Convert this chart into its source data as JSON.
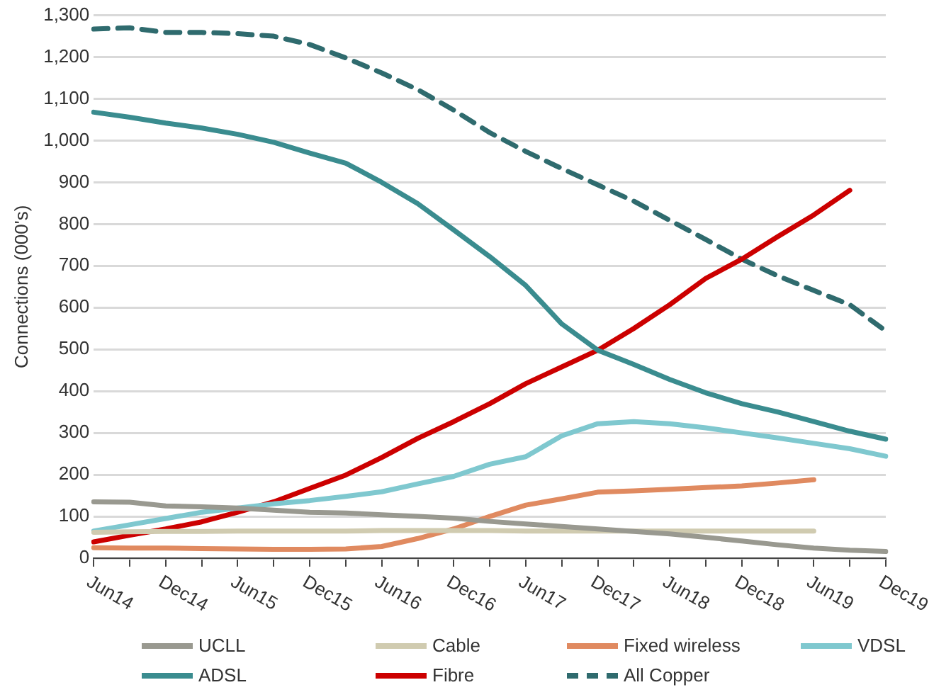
{
  "chart_data": {
    "type": "line",
    "ylabel": "Connections (000's)",
    "categories": [
      "Jun14",
      null,
      "Dec14",
      null,
      "Jun15",
      null,
      "Dec15",
      null,
      "Jun16",
      null,
      "Dec16",
      null,
      "Jun17",
      null,
      "Dec17",
      null,
      "Jun18",
      null,
      "Dec18",
      null,
      "Jun19",
      null,
      "Dec19"
    ],
    "series": [
      {
        "name": "UCLL",
        "color": "#999990",
        "values": [
          135,
          134,
          125,
          123,
          120,
          115,
          110,
          108,
          104,
          100,
          96,
          88,
          82,
          76,
          70,
          64,
          58,
          50,
          41,
          32,
          24,
          19,
          16
        ]
      },
      {
        "name": "Cable",
        "color": "#d0cbb0",
        "values": [
          62,
          63,
          64,
          64,
          65,
          65,
          65,
          65,
          66,
          66,
          66,
          66,
          65,
          65,
          65,
          65,
          65,
          65,
          65,
          65,
          65,
          null,
          null
        ]
      },
      {
        "name": "Fixed wireless",
        "color": "#e08a60",
        "values": [
          25,
          24,
          24,
          23,
          22,
          21,
          21,
          22,
          28,
          47,
          70,
          100,
          127,
          142,
          158,
          161,
          165,
          169,
          173,
          180,
          188,
          null,
          null
        ]
      },
      {
        "name": "VDSL",
        "color": "#7fc8cf",
        "values": [
          65,
          80,
          95,
          110,
          120,
          130,
          138,
          148,
          159,
          178,
          196,
          225,
          243,
          293,
          322,
          327,
          322,
          312,
          300,
          288,
          275,
          262,
          244
        ]
      },
      {
        "name": "ADSL",
        "color": "#3a8c8f",
        "values": [
          1068,
          1056,
          1042,
          1030,
          1015,
          996,
          970,
          946,
          900,
          849,
          786,
          722,
          653,
          561,
          498,
          464,
          428,
          396,
          370,
          350,
          327,
          304,
          285
        ]
      },
      {
        "name": "Fibre",
        "color": "#cc0000",
        "values": [
          39,
          55,
          70,
          87,
          110,
          135,
          167,
          199,
          241,
          287,
          327,
          370,
          418,
          458,
          498,
          550,
          607,
          670,
          716,
          770,
          822,
          881,
          null
        ]
      },
      {
        "name": "All Copper",
        "color": "#2f6b6e",
        "line_style": "dashed",
        "values": [
          1267,
          1270,
          1259,
          1259,
          1256,
          1250,
          1230,
          1198,
          1162,
          1122,
          1073,
          1019,
          974,
          933,
          894,
          855,
          809,
          763,
          716,
          676,
          641,
          607,
          544
        ]
      }
    ],
    "ylim": [
      0,
      1300
    ],
    "yticks": [
      0,
      100,
      200,
      300,
      400,
      500,
      600,
      700,
      800,
      900,
      {
        "value": 1000,
        "label": "1,000"
      },
      {
        "value": 1100,
        "label": "1,100"
      },
      {
        "value": 1200,
        "label": "1,200"
      },
      {
        "value": 1300,
        "label": "1,300"
      }
    ],
    "grid": "y",
    "legend": "bottom",
    "marker": "none",
    "line_style": "solid"
  }
}
